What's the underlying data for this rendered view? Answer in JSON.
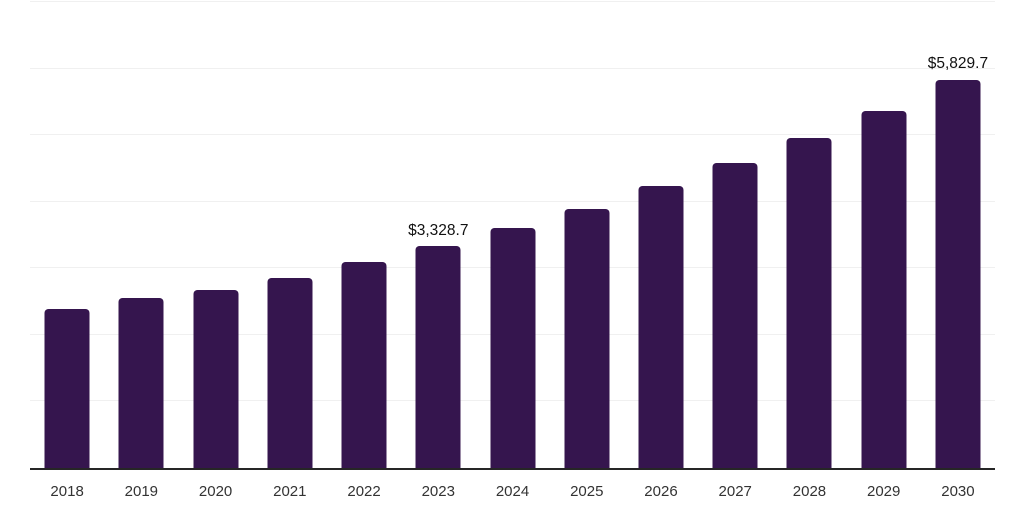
{
  "chart_data": {
    "type": "bar",
    "title": "",
    "xlabel": "",
    "ylabel": "",
    "categories": [
      "2018",
      "2019",
      "2020",
      "2021",
      "2022",
      "2023",
      "2024",
      "2025",
      "2026",
      "2027",
      "2028",
      "2029",
      "2030"
    ],
    "values": [
      2390,
      2555,
      2670,
      2860,
      3090,
      3328.7,
      3600,
      3890,
      4230,
      4580,
      4950,
      5360,
      5829.7
    ],
    "bar_labels": [
      "",
      "",
      "",
      "",
      "",
      "$3,328.7",
      "",
      "",
      "",
      "",
      "",
      "",
      "$5,829.7"
    ],
    "ylim": [
      0,
      7000
    ],
    "gridline_step": 1000,
    "grid": true,
    "legend": false,
    "colors": {
      "bar": "#35154E",
      "gridline": "#f0f0f0",
      "axis_line": "#262626",
      "tick_label": "#333333",
      "data_label": "#111111",
      "background": "#ffffff"
    }
  }
}
